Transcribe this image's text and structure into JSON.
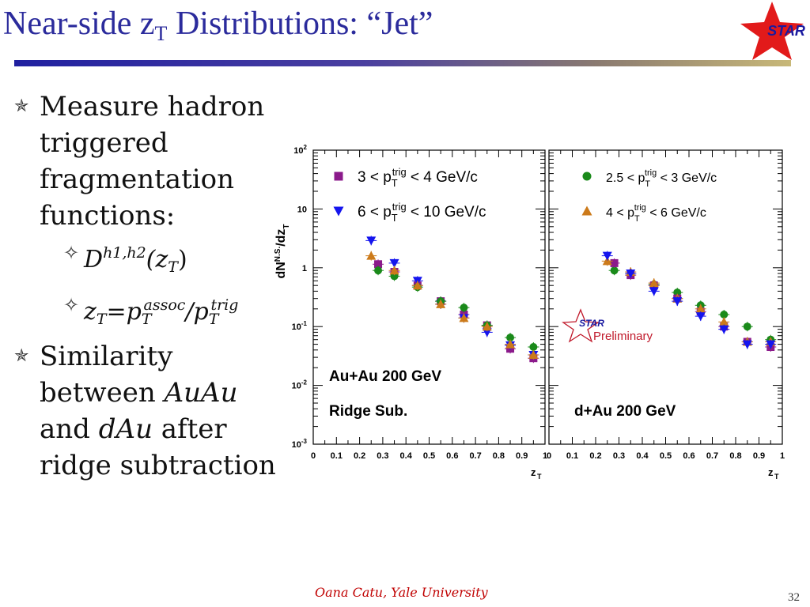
{
  "slide": {
    "title_main": "Near-side z",
    "title_sub": "T",
    "title_rest": " Distributions: “Jet”",
    "logo_text": "STAR",
    "footer": "Oana Catu, Yale University",
    "page_number": "32"
  },
  "bullets": {
    "b1_lines": [
      "Measure hadron",
      "triggered",
      "fragmentation",
      "functions:"
    ],
    "sub1": {
      "base": "D",
      "sup": "h1,h2",
      "open": "(z",
      "sub": "T",
      "close": ")"
    },
    "sub2": {
      "z": "z",
      "z_sub": "T",
      "eq": "=p",
      "p1_sub": "T",
      "p1_sup": "assoc",
      "slash": "/p",
      "p2_sub": "T",
      "p2_sup": "trig"
    },
    "b2_lines": [
      "Similarity",
      "between ",
      "AuAu",
      "and ",
      "dAu",
      " after",
      "ridge subtraction"
    ]
  },
  "chart_data": {
    "type": "scatter",
    "ylabel": "dN^N.S./dz_T",
    "xlabel": "z_T",
    "xlim": [
      0,
      1
    ],
    "ylim": [
      0.001,
      100
    ],
    "log_y": true,
    "y_tick_labels": [
      "10^-3",
      "10^-2",
      "10^-1",
      "1",
      "10",
      "10^2"
    ],
    "x_tick_labels": [
      "0",
      "0.1",
      "0.2",
      "0.3",
      "0.4",
      "0.5",
      "0.6",
      "0.7",
      "0.8",
      "0.9",
      "1"
    ],
    "panels": [
      {
        "name": "left",
        "annotations": [
          "Au+Au 200 GeV",
          "Ridge Sub."
        ],
        "series": [
          {
            "name": "3 < pT trig < 4 GeV/c",
            "color": "#8b1a8b",
            "marker": "square",
            "x": [
              0.28,
              0.35,
              0.45,
              0.55,
              0.65,
              0.75,
              0.85,
              0.95
            ],
            "y": [
              1.15,
              0.85,
              0.5,
              0.27,
              0.16,
              0.105,
              0.042,
              0.029
            ]
          },
          {
            "name": "6 < pT trig < 10 GeV/c",
            "color": "#1515ee",
            "marker": "triangle-down",
            "x": [
              0.25,
              0.35,
              0.45,
              0.55,
              0.65,
              0.75,
              0.85,
              0.95
            ],
            "y": [
              2.9,
              1.2,
              0.6,
              0.24,
              0.14,
              0.08,
              0.048,
              0.033
            ]
          },
          {
            "name": "2.5 < pT trig < 3 GeV/c",
            "color": "#1a8a1a",
            "marker": "circle",
            "x": [
              0.28,
              0.35,
              0.45,
              0.55,
              0.65,
              0.75,
              0.85,
              0.95
            ],
            "y": [
              0.9,
              0.72,
              0.47,
              0.27,
              0.21,
              0.105,
              0.065,
              0.045
            ]
          },
          {
            "name": "4 < pT trig < 6 GeV/c",
            "color": "#cc7a1a",
            "marker": "triangle-up",
            "x": [
              0.25,
              0.35,
              0.45,
              0.55,
              0.65,
              0.75,
              0.85,
              0.95
            ],
            "y": [
              1.6,
              0.9,
              0.5,
              0.24,
              0.14,
              0.1,
              0.05,
              0.033
            ]
          }
        ]
      },
      {
        "name": "right",
        "annotations": [
          "d+Au 200 GeV"
        ],
        "preliminary_text": "Preliminary",
        "series": [
          {
            "name": "2.5 < pT trig < 3 GeV/c",
            "color": "#1a8a1a",
            "marker": "circle",
            "x": [
              0.28,
              0.35,
              0.45,
              0.55,
              0.65,
              0.75,
              0.85,
              0.95
            ],
            "y": [
              0.9,
              0.8,
              0.52,
              0.38,
              0.23,
              0.16,
              0.1,
              0.06
            ]
          },
          {
            "name": "3 < pT trig < 4 GeV/c",
            "color": "#8b1a8b",
            "marker": "square",
            "x": [
              0.28,
              0.35,
              0.45,
              0.55,
              0.65,
              0.75,
              0.85,
              0.95
            ],
            "y": [
              1.2,
              0.75,
              0.5,
              0.3,
              0.18,
              0.1,
              0.055,
              0.045
            ]
          },
          {
            "name": "4 < pT trig < 6 GeV/c",
            "color": "#cc7a1a",
            "marker": "triangle-up",
            "x": [
              0.25,
              0.35,
              0.45,
              0.55,
              0.65,
              0.75,
              0.85,
              0.95
            ],
            "y": [
              1.3,
              0.85,
              0.55,
              0.3,
              0.2,
              0.12,
              0.055,
              0.055
            ]
          },
          {
            "name": "6 < pT trig < 10 GeV/c",
            "color": "#1515ee",
            "marker": "triangle-down",
            "x": [
              0.25,
              0.35,
              0.45,
              0.55,
              0.65,
              0.75,
              0.85,
              0.95
            ],
            "y": [
              1.6,
              0.8,
              0.4,
              0.27,
              0.15,
              0.09,
              0.05,
              0.05
            ]
          }
        ]
      }
    ],
    "legend_left": [
      {
        "pre": "3 < p",
        "sub": "T",
        "sup": "trig",
        "post": " < 4 GeV/c",
        "marker": "square",
        "color": "#8b1a8b"
      },
      {
        "pre": "6 < p",
        "sub": "T",
        "sup": "trig",
        "post": " < 10 GeV/c",
        "marker": "triangle-down",
        "color": "#1515ee"
      }
    ],
    "legend_right": [
      {
        "pre": "2.5 < p",
        "sub": "T",
        "sup": "trig",
        "post": " < 3 GeV/c",
        "marker": "circle",
        "color": "#1a8a1a"
      },
      {
        "pre": "4 < p",
        "sub": "T",
        "sup": "trig",
        "post": " < 6 GeV/c",
        "marker": "triangle-up",
        "color": "#cc7a1a"
      }
    ]
  }
}
